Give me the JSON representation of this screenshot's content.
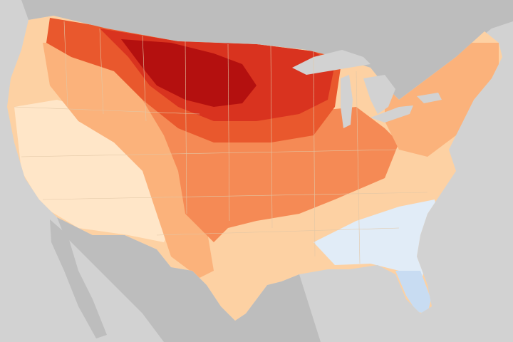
{
  "map": {
    "kind": "anomaly-choropleth",
    "region": "contiguous-united-states",
    "labels": [],
    "colors": {
      "ocean": "#d2d2d2",
      "land_outside": "#bdbdbd",
      "lake": "#d2d2d2",
      "state_border": "#e2c7a6",
      "scale": [
        "#c8dcf2",
        "#e1ecf7",
        "#ffe6c8",
        "#fdd1a3",
        "#fbb27b",
        "#f58a55",
        "#e9582d",
        "#d9331f",
        "#b4100f"
      ]
    },
    "zones": [
      {
        "id": "far-west-warm",
        "color": "#fdd1a3"
      },
      {
        "id": "great-basin-light",
        "color": "#ffe6c8"
      },
      {
        "id": "rockies-medium",
        "color": "#fbb27b"
      },
      {
        "id": "central-plains",
        "color": "#f58a55"
      },
      {
        "id": "northern-tier",
        "color": "#e9582d"
      },
      {
        "id": "north-dakota-minnesota-core",
        "color": "#d9331f"
      },
      {
        "id": "red-river-hotspot",
        "color": "#b4100f"
      },
      {
        "id": "northeast",
        "color": "#fbb27b"
      },
      {
        "id": "southeast-cool",
        "color": "#e1ecf7"
      },
      {
        "id": "florida-cool",
        "color": "#c8dcf2"
      }
    ]
  }
}
